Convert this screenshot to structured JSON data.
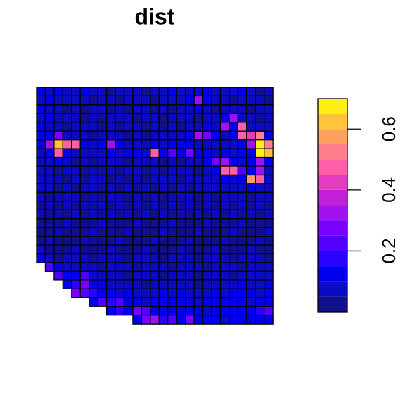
{
  "chart_data": {
    "type": "grid-map",
    "title": "dist",
    "zlim": [
      0,
      0.7
    ],
    "zticks": [
      0.2,
      0.4,
      0.6
    ],
    "colors": [
      "#10108c",
      "#0b0bc4",
      "#0000ee",
      "#2a00ff",
      "#5200ff",
      "#7a00ff",
      "#a010f0",
      "#c41fd8",
      "#e43cc0",
      "#ff5fa8",
      "#ff7f8c",
      "#ffa060",
      "#ffc43a",
      "#fff014"
    ],
    "values": [
      [
        0.1,
        0.08,
        0.1,
        0.06,
        0.08,
        0.1,
        0.08,
        0.06,
        0.04,
        0.06,
        0.08,
        0.06,
        0.04,
        0.06,
        0.08,
        0.1,
        0.08,
        0.06,
        0.08,
        0.1,
        0.08,
        0.06,
        0.08,
        0.1,
        0.06,
        0.04,
        0.06
      ],
      [
        0.08,
        0.1,
        0.06,
        0.08,
        0.06,
        0.08,
        0.04,
        0.06,
        0.08,
        0.04,
        0.06,
        0.08,
        0.06,
        0.04,
        0.06,
        0.08,
        0.06,
        0.1,
        0.3,
        0.1,
        0.08,
        0.06,
        0.04,
        0.06,
        0.08,
        0.06,
        0.04
      ],
      [
        0.1,
        0.06,
        0.08,
        0.04,
        0.06,
        0.04,
        0.06,
        0.08,
        0.04,
        0.06,
        0.04,
        0.06,
        0.08,
        0.04,
        0.06,
        0.04,
        0.06,
        0.08,
        0.1,
        0.06,
        0.04,
        0.06,
        0.08,
        0.06,
        0.04,
        0.06,
        0.08
      ],
      [
        0.08,
        0.1,
        0.06,
        0.08,
        0.06,
        0.04,
        0.06,
        0.04,
        0.06,
        0.08,
        0.06,
        0.04,
        0.06,
        0.08,
        0.04,
        0.06,
        0.08,
        0.06,
        0.04,
        0.06,
        0.08,
        0.1,
        0.3,
        0.08,
        0.06,
        0.04,
        0.06
      ],
      [
        0.1,
        0.08,
        0.06,
        0.04,
        0.06,
        0.08,
        0.06,
        0.04,
        0.06,
        0.04,
        0.06,
        0.08,
        0.04,
        0.06,
        0.04,
        0.06,
        0.04,
        0.06,
        0.08,
        0.1,
        0.08,
        0.3,
        0.1,
        0.45,
        0.08,
        0.06,
        0.08
      ],
      [
        0.12,
        0.1,
        0.25,
        0.08,
        0.06,
        0.08,
        0.04,
        0.06,
        0.08,
        0.06,
        0.04,
        0.06,
        0.04,
        0.06,
        0.08,
        0.06,
        0.08,
        0.1,
        0.3,
        0.28,
        0.1,
        0.08,
        0.12,
        0.45,
        0.4,
        0.5,
        0.1
      ],
      [
        0.1,
        0.3,
        0.6,
        0.45,
        0.45,
        0.1,
        0.08,
        0.12,
        0.3,
        0.1,
        0.08,
        0.06,
        0.08,
        0.1,
        0.08,
        0.1,
        0.12,
        0.1,
        0.08,
        0.06,
        0.08,
        0.06,
        0.08,
        0.1,
        0.3,
        0.68,
        0.5
      ],
      [
        0.08,
        0.12,
        0.45,
        0.1,
        0.08,
        0.06,
        0.08,
        0.06,
        0.1,
        0.08,
        0.1,
        0.12,
        0.08,
        0.45,
        0.1,
        0.2,
        0.1,
        0.25,
        0.12,
        0.1,
        0.08,
        0.1,
        0.08,
        0.1,
        0.12,
        0.7,
        0.6
      ],
      [
        0.06,
        0.08,
        0.1,
        0.06,
        0.04,
        0.06,
        0.04,
        0.06,
        0.08,
        0.06,
        0.04,
        0.06,
        0.08,
        0.06,
        0.04,
        0.06,
        0.04,
        0.06,
        0.08,
        0.1,
        0.25,
        0.3,
        0.1,
        0.08,
        0.1,
        0.3,
        0.1
      ],
      [
        0.08,
        0.06,
        0.04,
        0.06,
        0.08,
        0.04,
        0.06,
        0.04,
        0.06,
        0.04,
        0.06,
        0.08,
        0.04,
        0.06,
        0.04,
        0.06,
        0.08,
        0.06,
        0.04,
        0.06,
        0.1,
        0.45,
        0.45,
        0.2,
        0.1,
        0.3,
        0.08
      ],
      [
        0.06,
        0.08,
        0.06,
        0.04,
        0.06,
        0.04,
        0.06,
        0.08,
        0.04,
        0.06,
        0.04,
        0.06,
        0.04,
        0.06,
        0.08,
        0.06,
        0.04,
        0.06,
        0.08,
        0.06,
        0.08,
        0.1,
        0.08,
        0.1,
        0.55,
        0.45,
        0.06
      ],
      [
        0.08,
        0.06,
        0.04,
        0.06,
        0.04,
        0.06,
        0.08,
        0.04,
        0.06,
        0.04,
        0.06,
        0.04,
        0.06,
        0.04,
        0.06,
        0.04,
        0.06,
        0.04,
        0.06,
        0.08,
        0.06,
        0.08,
        0.06,
        0.08,
        0.1,
        0.08,
        0.06
      ],
      [
        0.06,
        0.04,
        0.06,
        0.08,
        0.06,
        0.04,
        0.06,
        0.04,
        0.06,
        0.08,
        0.04,
        0.06,
        0.04,
        0.06,
        0.04,
        0.06,
        0.08,
        0.06,
        0.04,
        0.06,
        0.04,
        0.06,
        0.08,
        0.06,
        0.04,
        0.06,
        0.08
      ],
      [
        0.04,
        0.06,
        0.04,
        0.06,
        0.04,
        0.06,
        0.04,
        0.06,
        0.04,
        0.06,
        0.04,
        0.06,
        0.04,
        0.06,
        0.04,
        0.06,
        0.04,
        0.06,
        0.04,
        0.06,
        0.04,
        0.06,
        0.04,
        0.06,
        0.04,
        0.06,
        0.04
      ],
      [
        0.06,
        0.04,
        0.06,
        0.04,
        0.06,
        0.04,
        0.06,
        0.04,
        0.06,
        0.04,
        0.06,
        0.04,
        0.06,
        0.04,
        0.06,
        0.04,
        0.06,
        0.04,
        0.06,
        0.04,
        0.06,
        0.04,
        0.06,
        0.04,
        0.06,
        0.04,
        0.06
      ],
      [
        0.04,
        0.03,
        0.04,
        0.06,
        0.04,
        0.03,
        0.04,
        0.06,
        0.04,
        0.03,
        0.04,
        0.06,
        0.04,
        0.03,
        0.04,
        0.06,
        0.04,
        0.03,
        0.04,
        0.06,
        0.04,
        0.03,
        0.04,
        0.06,
        0.04,
        0.03,
        0.04
      ],
      [
        0.03,
        0.04,
        0.06,
        0.04,
        0.03,
        0.04,
        0.06,
        0.04,
        0.03,
        0.04,
        0.06,
        0.04,
        0.03,
        0.04,
        0.06,
        0.04,
        0.03,
        0.04,
        0.06,
        0.04,
        0.03,
        0.04,
        0.06,
        0.04,
        0.03,
        0.04,
        0.06
      ],
      [
        0.04,
        0.06,
        0.04,
        0.03,
        0.04,
        0.06,
        0.04,
        0.03,
        0.04,
        0.06,
        0.04,
        0.03,
        0.04,
        0.06,
        0.04,
        0.03,
        0.04,
        0.06,
        0.04,
        0.03,
        0.04,
        0.06,
        0.04,
        0.03,
        0.04,
        0.06,
        0.04
      ],
      [
        0.06,
        0.04,
        0.03,
        0.04,
        0.06,
        0.04,
        0.03,
        0.04,
        0.06,
        0.04,
        0.03,
        0.04,
        0.06,
        0.04,
        0.03,
        0.04,
        0.06,
        0.04,
        0.03,
        0.04,
        0.06,
        0.04,
        0.03,
        0.04,
        0.06,
        0.04,
        0.03
      ],
      [
        0.1,
        0.06,
        0.04,
        0.06,
        0.08,
        0.06,
        0.04,
        0.06,
        0.08,
        0.06,
        0.04,
        0.06,
        0.08,
        0.06,
        0.04,
        0.06,
        0.08,
        0.06,
        0.04,
        0.06,
        0.08,
        0.06,
        0.04,
        0.06,
        0.08,
        0.06,
        0.04
      ],
      [
        null,
        0.2,
        0.12,
        0.08,
        0.06,
        0.08,
        0.06,
        0.04,
        0.06,
        0.08,
        0.06,
        0.04,
        0.06,
        0.08,
        0.06,
        0.04,
        0.06,
        0.08,
        0.06,
        0.04,
        0.06,
        0.08,
        0.06,
        0.04,
        0.06,
        0.08,
        0.06
      ],
      [
        null,
        null,
        0.2,
        0.12,
        0.1,
        0.2,
        0.08,
        0.06,
        0.08,
        0.06,
        0.04,
        0.06,
        0.08,
        0.06,
        0.04,
        0.06,
        0.08,
        0.06,
        0.04,
        0.06,
        0.08,
        0.06,
        0.04,
        0.06,
        0.08,
        0.06,
        0.08
      ],
      [
        null,
        null,
        null,
        0.12,
        0.15,
        0.25,
        0.12,
        0.1,
        0.08,
        0.06,
        0.08,
        0.06,
        0.04,
        0.06,
        0.08,
        0.06,
        0.08,
        0.06,
        0.04,
        0.06,
        0.08,
        0.06,
        0.08,
        0.1,
        0.08,
        0.06,
        0.1
      ],
      [
        null,
        null,
        null,
        null,
        0.25,
        0.2,
        0.15,
        0.12,
        0.1,
        0.08,
        0.1,
        0.08,
        0.06,
        0.08,
        0.1,
        0.08,
        0.1,
        0.08,
        0.06,
        0.08,
        0.1,
        0.08,
        0.1,
        0.12,
        0.1,
        0.08,
        0.12
      ],
      [
        null,
        null,
        null,
        null,
        null,
        null,
        0.12,
        0.2,
        0.15,
        0.2,
        0.12,
        0.1,
        0.08,
        0.1,
        0.12,
        0.1,
        0.12,
        0.1,
        0.08,
        0.1,
        0.12,
        0.1,
        0.12,
        0.1,
        0.08,
        0.1,
        0.12
      ],
      [
        null,
        null,
        null,
        null,
        null,
        null,
        null,
        null,
        0.12,
        0.15,
        0.12,
        0.25,
        0.2,
        0.12,
        0.1,
        0.12,
        0.1,
        0.12,
        0.1,
        0.08,
        0.1,
        0.12,
        0.1,
        0.12,
        0.1,
        0.15,
        0.2
      ],
      [
        null,
        null,
        null,
        null,
        null,
        null,
        null,
        null,
        null,
        null,
        null,
        0.12,
        0.25,
        0.3,
        0.15,
        0.2,
        0.12,
        0.25,
        0.1,
        0.12,
        0.1,
        0.08,
        0.1,
        0.12,
        0.1,
        0.12,
        0.1
      ]
    ]
  }
}
